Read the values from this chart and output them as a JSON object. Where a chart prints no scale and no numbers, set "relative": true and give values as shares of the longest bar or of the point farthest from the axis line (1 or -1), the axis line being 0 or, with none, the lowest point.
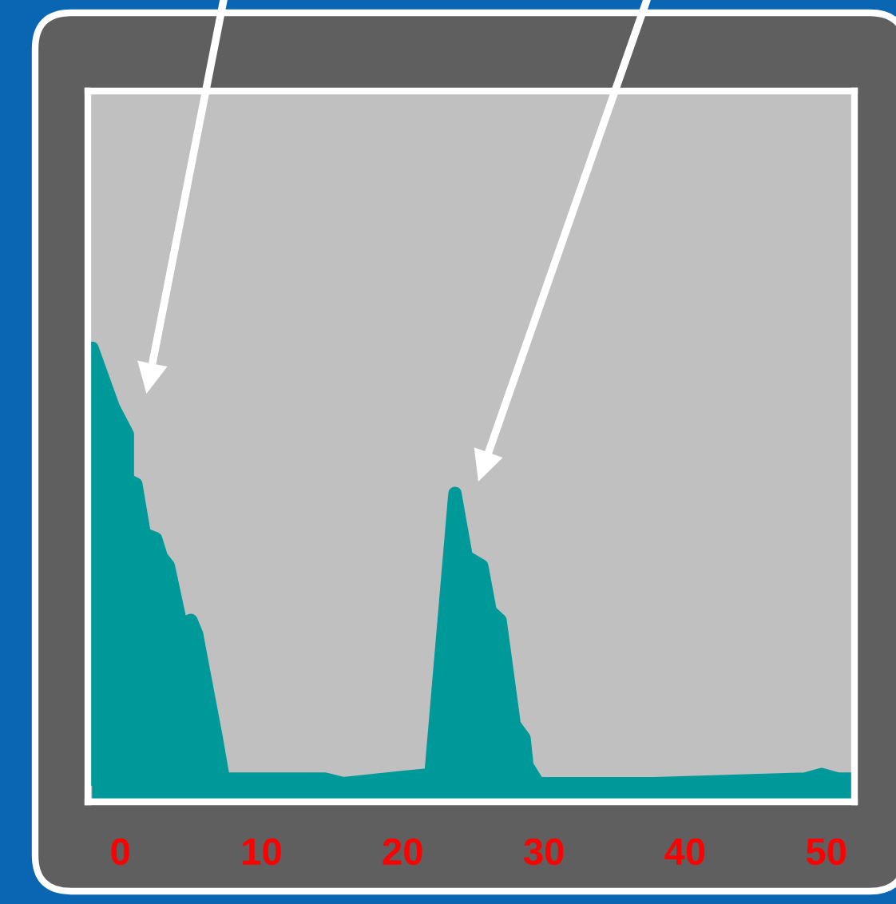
{
  "chart_data": {
    "type": "area",
    "relative": true,
    "color": "#009999",
    "x": [
      -2.0,
      -2.0,
      -0.5,
      0.5,
      0.5,
      1.1,
      1.7,
      2.5,
      2.9,
      3.4,
      4.3,
      5.0,
      5.4,
      6.8,
      7.3,
      14.5,
      15.8,
      22.0,
      23.7,
      24.5,
      25.6,
      26.2,
      26.9,
      27.9,
      28.6,
      28.8,
      29.6,
      37.2,
      37.8,
      48.5,
      49.7,
      50.8,
      51.9
    ],
    "values": [
      0.05,
      1.0,
      0.87,
      0.81,
      0.71,
      0.7,
      0.59,
      0.58,
      0.54,
      0.52,
      0.39,
      0.4,
      0.37,
      0.14,
      0.05,
      0.05,
      0.04,
      0.06,
      0.68,
      0.54,
      0.52,
      0.42,
      0.4,
      0.17,
      0.14,
      0.08,
      0.04,
      0.04,
      0.04,
      0.05,
      0.06,
      0.05,
      0.05
    ],
    "xlim": [
      -2.3,
      52
    ],
    "xticks": [
      0,
      10,
      20,
      30,
      40,
      50
    ],
    "tick_labels": "x",
    "grid": false,
    "legend": false
  }
}
